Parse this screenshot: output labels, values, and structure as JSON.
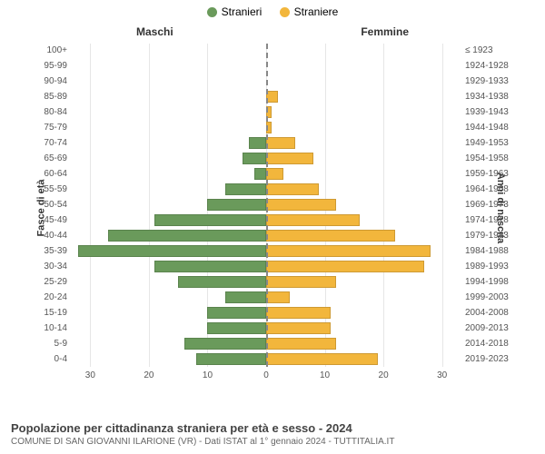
{
  "legend": {
    "male": {
      "label": "Stranieri",
      "color": "#6a9a5b"
    },
    "female": {
      "label": "Straniere",
      "color": "#f2b63c"
    }
  },
  "headers": {
    "left": "Maschi",
    "right": "Femmine",
    "y_left_title": "Fasce di età",
    "y_right_title": "Anni di nascita"
  },
  "chart": {
    "type": "population-pyramid",
    "xmax": 33,
    "xticks": [
      0,
      10,
      20,
      30
    ],
    "background_color": "#ffffff",
    "grid_color": "#e6e6e6",
    "male_color": "#6a9a5b",
    "female_color": "#f2b63c",
    "label_fontsize": 10,
    "rows": [
      {
        "age": "100+",
        "birth": "≤ 1923",
        "male": 0,
        "female": 0
      },
      {
        "age": "95-99",
        "birth": "1924-1928",
        "male": 0,
        "female": 0
      },
      {
        "age": "90-94",
        "birth": "1929-1933",
        "male": 0,
        "female": 0
      },
      {
        "age": "85-89",
        "birth": "1934-1938",
        "male": 0,
        "female": 2
      },
      {
        "age": "80-84",
        "birth": "1939-1943",
        "male": 0,
        "female": 1
      },
      {
        "age": "75-79",
        "birth": "1944-1948",
        "male": 0,
        "female": 1
      },
      {
        "age": "70-74",
        "birth": "1949-1953",
        "male": 3,
        "female": 5
      },
      {
        "age": "65-69",
        "birth": "1954-1958",
        "male": 4,
        "female": 8
      },
      {
        "age": "60-64",
        "birth": "1959-1963",
        "male": 2,
        "female": 3
      },
      {
        "age": "55-59",
        "birth": "1964-1968",
        "male": 7,
        "female": 9
      },
      {
        "age": "50-54",
        "birth": "1969-1973",
        "male": 10,
        "female": 12
      },
      {
        "age": "45-49",
        "birth": "1974-1978",
        "male": 19,
        "female": 16
      },
      {
        "age": "40-44",
        "birth": "1979-1983",
        "male": 27,
        "female": 22
      },
      {
        "age": "35-39",
        "birth": "1984-1988",
        "male": 32,
        "female": 28
      },
      {
        "age": "30-34",
        "birth": "1989-1993",
        "male": 19,
        "female": 27
      },
      {
        "age": "25-29",
        "birth": "1994-1998",
        "male": 15,
        "female": 12
      },
      {
        "age": "20-24",
        "birth": "1999-2003",
        "male": 7,
        "female": 4
      },
      {
        "age": "15-19",
        "birth": "2004-2008",
        "male": 10,
        "female": 11
      },
      {
        "age": "10-14",
        "birth": "2009-2013",
        "male": 10,
        "female": 11
      },
      {
        "age": "5-9",
        "birth": "2014-2018",
        "male": 14,
        "female": 12
      },
      {
        "age": "0-4",
        "birth": "2019-2023",
        "male": 12,
        "female": 19
      }
    ]
  },
  "footer": {
    "title": "Popolazione per cittadinanza straniera per età e sesso - 2024",
    "subtitle": "COMUNE DI SAN GIOVANNI ILARIONE (VR) - Dati ISTAT al 1° gennaio 2024 - TUTTITALIA.IT"
  }
}
